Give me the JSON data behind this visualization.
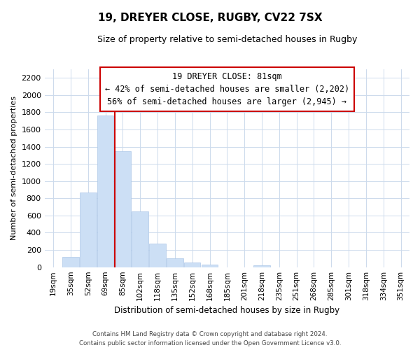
{
  "title": "19, DREYER CLOSE, RUGBY, CV22 7SX",
  "subtitle": "Size of property relative to semi-detached houses in Rugby",
  "xlabel": "Distribution of semi-detached houses by size in Rugby",
  "ylabel": "Number of semi-detached properties",
  "bar_color": "#ccdff5",
  "bar_edge_color": "#adc8e8",
  "grid_color": "#ccdaec",
  "categories": [
    "19sqm",
    "35sqm",
    "52sqm",
    "69sqm",
    "85sqm",
    "102sqm",
    "118sqm",
    "135sqm",
    "152sqm",
    "168sqm",
    "185sqm",
    "201sqm",
    "218sqm",
    "235sqm",
    "251sqm",
    "268sqm",
    "285sqm",
    "301sqm",
    "318sqm",
    "334sqm",
    "351sqm"
  ],
  "values": [
    0,
    120,
    870,
    1760,
    1350,
    650,
    270,
    100,
    55,
    30,
    0,
    0,
    25,
    0,
    0,
    0,
    0,
    0,
    0,
    0,
    0
  ],
  "property_line_idx": 4,
  "property_line_color": "#cc0000",
  "ylim": [
    0,
    2300
  ],
  "yticks": [
    0,
    200,
    400,
    600,
    800,
    1000,
    1200,
    1400,
    1600,
    1800,
    2000,
    2200
  ],
  "annotation_title": "19 DREYER CLOSE: 81sqm",
  "annotation_line1": "← 42% of semi-detached houses are smaller (2,202)",
  "annotation_line2": "56% of semi-detached houses are larger (2,945) →",
  "annotation_box_color": "#ffffff",
  "annotation_box_edge": "#cc0000",
  "footer_line1": "Contains HM Land Registry data © Crown copyright and database right 2024.",
  "footer_line2": "Contains public sector information licensed under the Open Government Licence v3.0.",
  "background_color": "#ffffff"
}
